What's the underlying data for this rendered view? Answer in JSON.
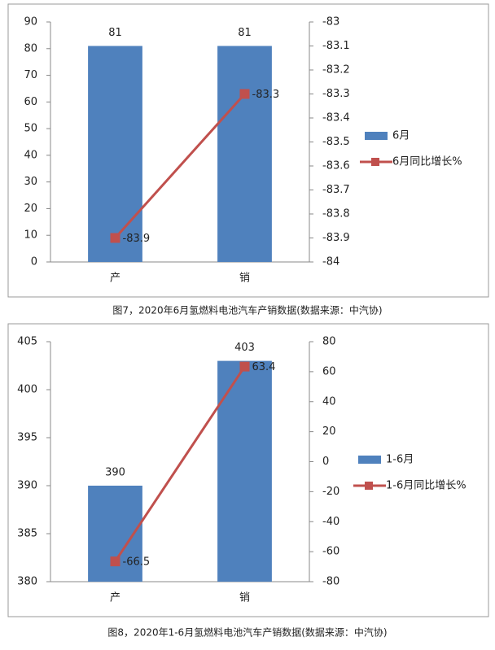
{
  "chart_data": [
    {
      "type": "bar",
      "caption": "图7，2020年6月氢燃料电池汽车产销数据(数据来源：中汽协)",
      "categories": [
        "产",
        "销"
      ],
      "series": [
        {
          "name": "6月",
          "type": "bar",
          "color": "#4f81bd",
          "values": [
            81,
            81
          ]
        },
        {
          "name": "6月同比增长%",
          "type": "line",
          "axis": "y2",
          "color": "#c0504d",
          "values": [
            -83.9,
            -83.3
          ]
        }
      ],
      "ylim": [
        0,
        90
      ],
      "yticks": [
        0,
        10,
        20,
        30,
        40,
        50,
        60,
        70,
        80,
        90
      ],
      "y2lim": [
        -84,
        -83
      ],
      "y2ticks": [
        -84,
        -83.9,
        -83.8,
        -83.7,
        -83.6,
        -83.5,
        -83.4,
        -83.3,
        -83.2,
        -83.1,
        -83
      ],
      "grid": false,
      "legend": "right"
    },
    {
      "type": "bar",
      "caption": "图8，2020年1-6月氢燃料电池汽车产销数据(数据来源：中汽协)",
      "categories": [
        "产",
        "销"
      ],
      "series": [
        {
          "name": "1-6月",
          "type": "bar",
          "color": "#4f81bd",
          "values": [
            390,
            403
          ]
        },
        {
          "name": "1-6月同比增长%",
          "type": "line",
          "axis": "y2",
          "color": "#c0504d",
          "values": [
            -66.5,
            63.4
          ]
        }
      ],
      "ylim": [
        380,
        405
      ],
      "yticks": [
        380,
        385,
        390,
        395,
        400,
        405
      ],
      "y2lim": [
        -80,
        80
      ],
      "y2ticks": [
        -80,
        -60,
        -40,
        -20,
        0,
        20,
        40,
        60,
        80
      ],
      "grid": false,
      "legend": "right"
    }
  ]
}
